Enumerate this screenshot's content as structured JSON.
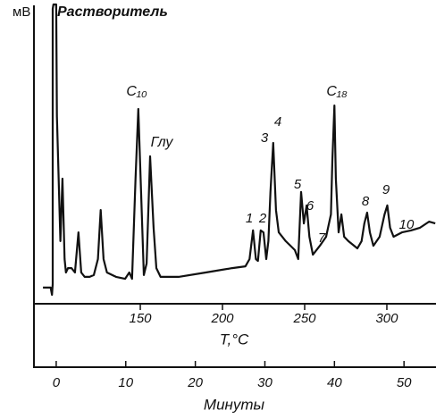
{
  "chart_data": {
    "type": "line",
    "ylabel": "мВ",
    "xlabel": "Минуты",
    "x2label": "T,°C",
    "annotations": [
      "Растворитель",
      "C₁₀",
      "Глу",
      "C₁₈",
      "1",
      "2",
      "3",
      "4",
      "5",
      "6",
      "7",
      "8",
      "9",
      "10"
    ],
    "xlim": [
      -3.2,
      54.6
    ],
    "xticks": [
      0,
      10,
      20,
      30,
      40,
      50
    ],
    "x2lim": [
      85.3,
      329.9
    ],
    "x2ticks": [
      150,
      200,
      250,
      300
    ],
    "ylim": [
      0,
      100
    ],
    "color": "#111111",
    "x": [
      -1.9,
      -0.8,
      -0.6,
      -0.5,
      -0.5,
      -0.4,
      0,
      0.1,
      0.6,
      0.9,
      1.2,
      1.4,
      1.7,
      2.2,
      2.7,
      3.2,
      3.6,
      4.1,
      4.8,
      5.4,
      6.0,
      6.4,
      6.8,
      7.3,
      8.6,
      9.9,
      10.5,
      10.9,
      11.4,
      11.8,
      12.2,
      12.6,
      13.0,
      13.5,
      14.0,
      14.4,
      15.0,
      17.6,
      21.5,
      25.3,
      27.2,
      27.8,
      28.3,
      28.7,
      29.0,
      29.4,
      29.8,
      30.2,
      30.5,
      30.8,
      31.2,
      31.6,
      32.0,
      33.0,
      34.3,
      34.8,
      35.2,
      35.6,
      36.0,
      36.4,
      36.9,
      37.9,
      38.8,
      39.5,
      39.7,
      40.0,
      40.2,
      40.6,
      41.0,
      41.4,
      42.0,
      43.3,
      43.9,
      44.3,
      44.7,
      45.1,
      45.6,
      46.5,
      47.2,
      47.6,
      48.0,
      48.5,
      49.7,
      51.0,
      52.3,
      53.6,
      54.5
    ],
    "values": [
      2.5,
      2.5,
      0,
      3.7,
      98.5,
      100,
      100,
      61.5,
      18.5,
      40,
      12.3,
      7.7,
      9.2,
      9.2,
      7.7,
      21.5,
      7.7,
      6.2,
      6.2,
      6.8,
      12.3,
      29.2,
      12.3,
      7.7,
      6.2,
      5.5,
      7.7,
      5.5,
      40,
      64,
      35.4,
      6.8,
      10.8,
      47.7,
      23.1,
      9.2,
      6.2,
      6.2,
      7.7,
      9.2,
      9.8,
      12.3,
      22.2,
      12.3,
      11.7,
      22.2,
      21.5,
      12.3,
      18.5,
      35.4,
      52.3,
      29.2,
      21.5,
      18.5,
      15.4,
      12.3,
      35.4,
      24.6,
      30.8,
      20,
      13.8,
      16.9,
      20,
      27.7,
      46.2,
      65.2,
      40,
      21.5,
      27.7,
      20,
      18.5,
      16,
      18.5,
      24.6,
      28.3,
      21.5,
      16.9,
      20,
      27.7,
      30.8,
      23.1,
      20,
      21.5,
      22.2,
      23.1,
      25.2,
      24.6
    ]
  }
}
